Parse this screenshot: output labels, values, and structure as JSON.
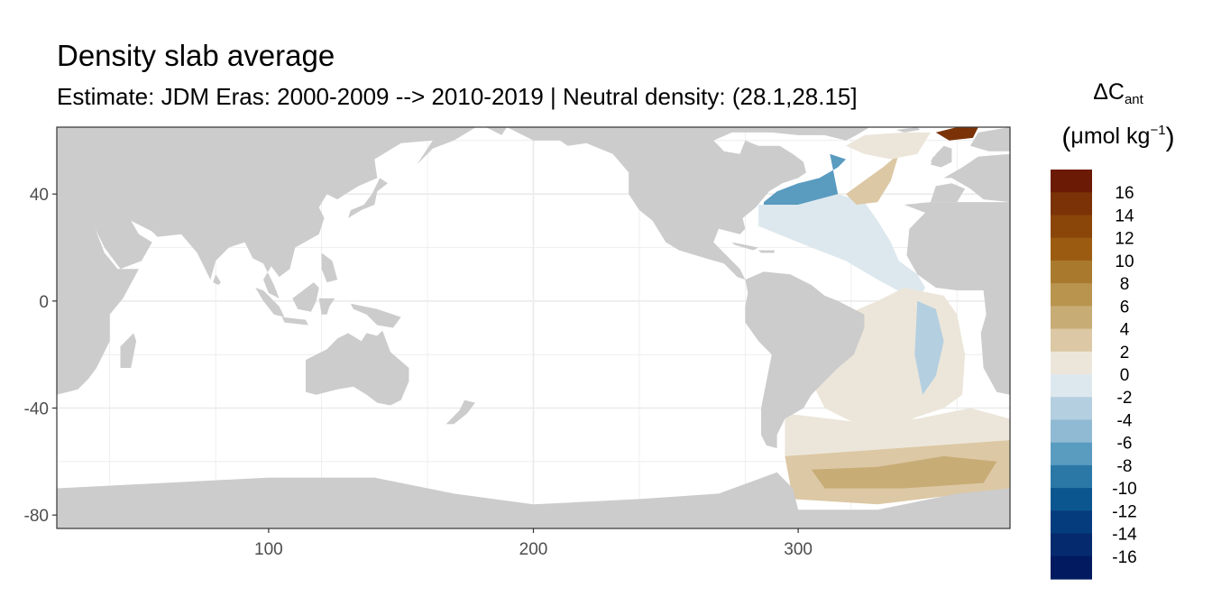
{
  "title": "Density slab average",
  "subtitle": "Estimate: JDM Eras: 2000-2009 --> 2010-2019 | Neutral density: (28.1,28.15]",
  "colors": {
    "land": "#cccccc",
    "ocean_no_data": "#ffffff",
    "grid": "#ebebeb",
    "axis_text": "#4d4d4d"
  },
  "chart_data": {
    "type": "heatmap",
    "title": "Density slab average",
    "subtitle": "Estimate: JDM Eras: 2000-2009 --> 2010-2019 | Neutral density: (28.1,28.15]",
    "xlabel": "",
    "ylabel": "",
    "xlim": [
      20,
      380
    ],
    "ylim": [
      -85,
      65
    ],
    "x_ticks": [
      100,
      200,
      300
    ],
    "y_ticks": [
      40,
      0,
      -40,
      -80
    ],
    "grid": true,
    "legend": {
      "title_symbol": "ΔC",
      "title_subscript": "ant",
      "unit_base": "μmol kg",
      "unit_superscript": "−1",
      "placement": "right",
      "labels": [
        "16",
        "14",
        "12",
        "10",
        "8",
        "6",
        "4",
        "2",
        "0",
        "-2",
        "-4",
        "-6",
        "-8",
        "-10",
        "-12",
        "-14",
        "-16"
      ],
      "bins": [
        {
          "max": 18,
          "color": "#6b1a06"
        },
        {
          "max": 16,
          "color": "#7a3206"
        },
        {
          "max": 14,
          "color": "#8a4509"
        },
        {
          "max": 12,
          "color": "#9b5c12"
        },
        {
          "max": 10,
          "color": "#a97a2d"
        },
        {
          "max": 8,
          "color": "#b9944f"
        },
        {
          "max": 6,
          "color": "#c8ac76"
        },
        {
          "max": 4,
          "color": "#dcc8a4"
        },
        {
          "max": 2,
          "color": "#ece6da"
        },
        {
          "max": 0,
          "color": "#dde8ee"
        },
        {
          "max": -2,
          "color": "#b4cfe0"
        },
        {
          "max": -4,
          "color": "#90bad4"
        },
        {
          "max": -6,
          "color": "#5a9bc0"
        },
        {
          "max": -8,
          "color": "#2b78a7"
        },
        {
          "max": -10,
          "color": "#0c5690"
        },
        {
          "max": -12,
          "color": "#053c7e"
        },
        {
          "max": -14,
          "color": "#052a6e"
        },
        {
          "max": -16,
          "color": "#021a5f"
        }
      ]
    },
    "regions": [
      {
        "name": "north-atlantic-blue-patch",
        "value": -6,
        "polygon": [
          [
            287,
            37
          ],
          [
            292,
            41
          ],
          [
            300,
            44
          ],
          [
            308,
            46
          ],
          [
            315,
            50
          ],
          [
            318,
            53
          ],
          [
            312,
            55
          ],
          [
            315,
            40
          ],
          [
            300,
            36
          ],
          [
            287,
            36
          ]
        ]
      },
      {
        "name": "north-atlantic-light-blue",
        "value": -1,
        "polygon": [
          [
            285,
            36
          ],
          [
            300,
            36
          ],
          [
            315,
            40
          ],
          [
            325,
            37
          ],
          [
            330,
            30
          ],
          [
            335,
            22
          ],
          [
            338,
            15
          ],
          [
            345,
            10
          ],
          [
            348,
            5
          ],
          [
            345,
            0
          ],
          [
            330,
            8
          ],
          [
            318,
            15
          ],
          [
            305,
            20
          ],
          [
            295,
            24
          ],
          [
            285,
            28
          ]
        ]
      },
      {
        "name": "north-atlantic-subpolar-tan",
        "value": 3,
        "polygon": [
          [
            318,
            40
          ],
          [
            325,
            45
          ],
          [
            332,
            50
          ],
          [
            338,
            55
          ],
          [
            335,
            45
          ],
          [
            330,
            37
          ],
          [
            322,
            36
          ]
        ]
      },
      {
        "name": "nordic-seas-tan",
        "value": 2,
        "polygon": [
          [
            318,
            58
          ],
          [
            325,
            62
          ],
          [
            340,
            63
          ],
          [
            350,
            63
          ],
          [
            345,
            55
          ],
          [
            335,
            53
          ],
          [
            325,
            55
          ]
        ]
      },
      {
        "name": "arctic-brown-cells",
        "value": 16,
        "polygon": [
          [
            352,
            63
          ],
          [
            360,
            65
          ],
          [
            368,
            65
          ],
          [
            366,
            61
          ],
          [
            357,
            60
          ]
        ]
      },
      {
        "name": "south-atlantic-light",
        "value": 1,
        "polygon": [
          [
            318,
            -5
          ],
          [
            330,
            0
          ],
          [
            340,
            5
          ],
          [
            355,
            2
          ],
          [
            360,
            -5
          ],
          [
            363,
            -20
          ],
          [
            362,
            -35
          ],
          [
            355,
            -40
          ],
          [
            340,
            -45
          ],
          [
            320,
            -45
          ],
          [
            310,
            -40
          ],
          [
            305,
            -30
          ],
          [
            310,
            -15
          ]
        ]
      },
      {
        "name": "south-atlantic-blue-streak",
        "value": -2,
        "polygon": [
          [
            345,
            0
          ],
          [
            352,
            -3
          ],
          [
            355,
            -15
          ],
          [
            352,
            -28
          ],
          [
            347,
            -35
          ],
          [
            344,
            -20
          ]
        ]
      },
      {
        "name": "southern-ocean-light",
        "value": 1.5,
        "polygon": [
          [
            295,
            -42
          ],
          [
            320,
            -45
          ],
          [
            345,
            -44
          ],
          [
            365,
            -40
          ],
          [
            380,
            -44
          ],
          [
            380,
            -58
          ],
          [
            295,
            -58
          ]
        ]
      },
      {
        "name": "southern-ocean-tan",
        "value": 3.5,
        "polygon": [
          [
            295,
            -58
          ],
          [
            380,
            -52
          ],
          [
            380,
            -70
          ],
          [
            330,
            -76
          ],
          [
            298,
            -74
          ]
        ]
      },
      {
        "name": "weddell-darker-tan",
        "value": 6,
        "polygon": [
          [
            305,
            -63
          ],
          [
            330,
            -62
          ],
          [
            355,
            -58
          ],
          [
            375,
            -60
          ],
          [
            370,
            -68
          ],
          [
            340,
            -70
          ],
          [
            310,
            -70
          ]
        ]
      }
    ]
  }
}
